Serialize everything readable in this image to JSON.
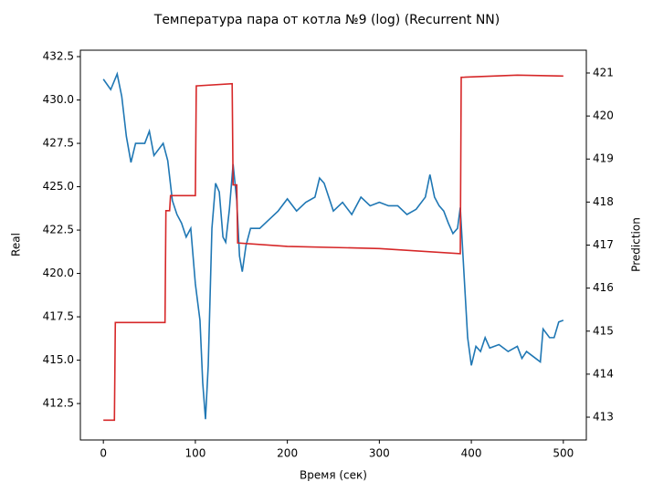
{
  "chart_data": {
    "type": "line",
    "title": "Температура пара от котла №9 (log) (Recurrent NN)",
    "x_label": "Время (сек)",
    "y_label": "Real",
    "y2_label": "Prediction",
    "xlim": [
      -25,
      525
    ],
    "xticks": [
      0,
      100,
      200,
      300,
      400,
      500
    ],
    "ylim": [
      410.4,
      432.87
    ],
    "yticks": [
      412.5,
      {
        "value": 415,
        "label": "415.0"
      },
      417.5,
      {
        "value": 420,
        "label": "420.0"
      },
      422.5,
      {
        "value": 425,
        "label": "425.0"
      },
      427.5,
      {
        "value": 430,
        "label": "430.0"
      },
      432.5
    ],
    "y2lim": [
      412.47,
      421.53
    ],
    "y2ticks": [
      413,
      414,
      415,
      416,
      417,
      418,
      419,
      420,
      421
    ],
    "series": [
      {
        "color": "#1f77b4",
        "x": [
          0,
          8,
          15,
          20,
          25,
          30,
          35,
          45,
          50,
          55,
          65,
          70,
          75,
          80,
          85,
          90,
          95,
          100,
          105,
          108,
          111,
          114,
          118,
          122,
          126,
          130,
          133,
          137,
          141,
          145,
          148,
          151,
          155,
          160,
          170,
          180,
          190,
          200,
          210,
          220,
          230,
          235,
          240,
          250,
          260,
          270,
          280,
          290,
          300,
          310,
          320,
          330,
          340,
          350,
          355,
          360,
          365,
          370,
          375,
          380,
          385,
          388,
          392,
          396,
          400,
          405,
          410,
          415,
          420,
          430,
          440,
          450,
          455,
          460,
          470,
          475,
          478,
          485,
          490,
          495,
          500
        ],
        "values": [
          431.2,
          430.6,
          431.5,
          430.2,
          427.9,
          426.4,
          427.5,
          427.5,
          428.2,
          426.8,
          427.5,
          426.5,
          424.2,
          423.4,
          422.9,
          422.1,
          422.6,
          419.4,
          417.3,
          413.7,
          411.6,
          414.7,
          422.6,
          425.2,
          424.7,
          422.1,
          421.8,
          423.7,
          426.3,
          424.2,
          421.0,
          420.1,
          421.6,
          422.6,
          422.6,
          423.1,
          423.6,
          424.3,
          423.6,
          424.1,
          424.4,
          425.5,
          425.2,
          423.6,
          424.1,
          423.4,
          424.4,
          423.9,
          424.1,
          423.9,
          423.9,
          423.4,
          423.7,
          424.4,
          425.7,
          424.4,
          423.9,
          423.6,
          422.9,
          422.3,
          422.6,
          423.8,
          420.0,
          416.3,
          414.7,
          415.8,
          415.5,
          416.3,
          415.7,
          415.9,
          415.5,
          415.8,
          415.1,
          415.5,
          415.1,
          414.9,
          416.8,
          416.3,
          416.3,
          417.2,
          417.3
        ]
      },
      {
        "color": "#d62728",
        "axis": "y2",
        "x": [
          0,
          12,
          13,
          67,
          68,
          72,
          73,
          100,
          101,
          140,
          141,
          145,
          146,
          200,
          300,
          388,
          389,
          450,
          500
        ],
        "values": [
          412.93,
          412.93,
          415.2,
          415.2,
          417.8,
          417.8,
          418.15,
          418.15,
          420.7,
          420.75,
          418.4,
          418.4,
          417.05,
          416.97,
          416.92,
          416.8,
          420.9,
          420.95,
          420.93
        ]
      }
    ]
  }
}
